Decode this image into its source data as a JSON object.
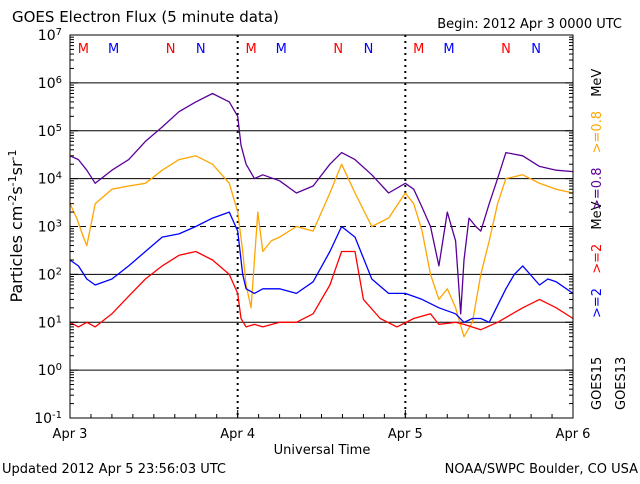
{
  "header": {
    "title": "GOES Electron Flux (5 minute data)",
    "begin": "Begin: 2012 Apr 3 0000 UTC"
  },
  "footer": {
    "updated": "Updated 2012 Apr  5 23:56:03 UTC",
    "credit": "NOAA/SWPC Boulder, CO USA"
  },
  "legend": {
    "ch1_prefix": ">=2",
    "ch1_unit": "MeV",
    "ch2_prefix": ">=0.8",
    "ch2_unit": "MeV",
    "sat_a": "GOES15",
    "sat_b": "GOES13"
  },
  "colors": {
    "goes15_high": "#0000ff",
    "goes15_low": "#5a0099",
    "goes13_high": "#ff0000",
    "goes13_low": "#ffa500",
    "marker_m": "#ff0000",
    "marker_n": "#0000ff"
  },
  "chart_data": {
    "type": "line",
    "title": "GOES Electron Flux (5 minute data)",
    "xlabel": "Universal Time",
    "ylabel": "Particles cm-2s-1sr-1",
    "yscale": "log",
    "ylim": [
      0.1,
      10000000
    ],
    "xlim": [
      0,
      3
    ],
    "x_unit": "days since 2012 Apr 3 0000 UTC",
    "x_ticks": [
      {
        "x": 0,
        "label": "Apr 3"
      },
      {
        "x": 1,
        "label": "Apr 4"
      },
      {
        "x": 2,
        "label": "Apr 5"
      },
      {
        "x": 3,
        "label": "Apr 6"
      }
    ],
    "y_ticks": [
      {
        "exp": -1,
        "base": "10",
        "sup": "-1"
      },
      {
        "exp": 0,
        "base": "10",
        "sup": "0"
      },
      {
        "exp": 1,
        "base": "10",
        "sup": "1"
      },
      {
        "exp": 2,
        "base": "10",
        "sup": "2"
      },
      {
        "exp": 3,
        "base": "10",
        "sup": "3"
      },
      {
        "exp": 4,
        "base": "10",
        "sup": "4"
      },
      {
        "exp": 5,
        "base": "10",
        "sup": "5"
      },
      {
        "exp": 6,
        "base": "10",
        "sup": "6"
      },
      {
        "exp": 7,
        "base": "10",
        "sup": "7"
      }
    ],
    "top_markers": [
      {
        "x": 0.08,
        "label": "M",
        "color": "#ff0000"
      },
      {
        "x": 0.26,
        "label": "M",
        "color": "#0000ff"
      },
      {
        "x": 0.6,
        "label": "N",
        "color": "#ff0000"
      },
      {
        "x": 0.78,
        "label": "N",
        "color": "#0000ff"
      },
      {
        "x": 1.08,
        "label": "M",
        "color": "#ff0000"
      },
      {
        "x": 1.26,
        "label": "M",
        "color": "#0000ff"
      },
      {
        "x": 1.6,
        "label": "N",
        "color": "#ff0000"
      },
      {
        "x": 1.78,
        "label": "N",
        "color": "#0000ff"
      },
      {
        "x": 2.08,
        "label": "M",
        "color": "#ff0000"
      },
      {
        "x": 2.26,
        "label": "M",
        "color": "#0000ff"
      },
      {
        "x": 2.6,
        "label": "N",
        "color": "#ff0000"
      },
      {
        "x": 2.78,
        "label": "N",
        "color": "#0000ff"
      }
    ],
    "grid": true,
    "series": [
      {
        "color": "#5a0099",
        "x": [
          0,
          0.05,
          0.1,
          0.15,
          0.25,
          0.35,
          0.45,
          0.55,
          0.65,
          0.75,
          0.85,
          0.95,
          1.0,
          1.02,
          1.05,
          1.1,
          1.15,
          1.25,
          1.35,
          1.45,
          1.55,
          1.62,
          1.7,
          1.8,
          1.9,
          2.0,
          2.05,
          2.1,
          2.15,
          2.2,
          2.25,
          2.3,
          2.33,
          2.35,
          2.38,
          2.42,
          2.45,
          2.5,
          2.55,
          2.6,
          2.7,
          2.8,
          2.9,
          3.0
        ],
        "values": [
          30000,
          25000,
          15000,
          8000,
          15000,
          25000,
          60000,
          120000,
          250000,
          400000,
          600000,
          400000,
          200000,
          50000,
          20000,
          10000,
          12000,
          9000,
          5000,
          7000,
          20000,
          35000,
          25000,
          12000,
          5000,
          8000,
          6000,
          2500,
          1000,
          150,
          2000,
          500,
          15,
          200,
          1500,
          1000,
          800,
          3000,
          10000,
          35000,
          30000,
          18000,
          15000,
          14000
        ]
      },
      {
        "color": "#ffa500",
        "x": [
          0,
          0.04,
          0.08,
          0.1,
          0.15,
          0.25,
          0.35,
          0.45,
          0.55,
          0.65,
          0.75,
          0.85,
          0.95,
          1.0,
          1.03,
          1.05,
          1.08,
          1.12,
          1.15,
          1.2,
          1.25,
          1.35,
          1.45,
          1.55,
          1.62,
          1.7,
          1.8,
          1.9,
          2.0,
          2.05,
          2.1,
          2.15,
          2.2,
          2.25,
          2.3,
          2.35,
          2.4,
          2.45,
          2.5,
          2.55,
          2.6,
          2.7,
          2.8,
          2.9,
          3.0
        ],
        "values": [
          3000,
          1500,
          600,
          400,
          3000,
          6000,
          7000,
          8000,
          15000,
          25000,
          30000,
          20000,
          8000,
          2000,
          300,
          60,
          20,
          2000,
          300,
          500,
          600,
          1000,
          800,
          5000,
          20000,
          5000,
          1000,
          1500,
          5000,
          3000,
          800,
          100,
          30,
          50,
          20,
          5,
          10,
          100,
          500,
          3000,
          10000,
          12000,
          8000,
          6000,
          5000
        ]
      },
      {
        "color": "#0000ff",
        "x": [
          0,
          0.05,
          0.1,
          0.15,
          0.25,
          0.35,
          0.45,
          0.55,
          0.65,
          0.75,
          0.85,
          0.95,
          1.0,
          1.03,
          1.05,
          1.1,
          1.15,
          1.25,
          1.35,
          1.45,
          1.55,
          1.62,
          1.7,
          1.8,
          1.9,
          2.0,
          2.1,
          2.2,
          2.3,
          2.35,
          2.4,
          2.45,
          2.5,
          2.6,
          2.65,
          2.7,
          2.8,
          2.85,
          2.9,
          3.0
        ],
        "values": [
          200,
          150,
          80,
          60,
          80,
          150,
          300,
          600,
          700,
          1000,
          1500,
          2000,
          800,
          100,
          50,
          40,
          50,
          50,
          40,
          70,
          300,
          1000,
          600,
          80,
          40,
          40,
          30,
          20,
          15,
          10,
          12,
          12,
          10,
          50,
          100,
          150,
          60,
          80,
          70,
          40
        ]
      },
      {
        "color": "#ff0000",
        "x": [
          0,
          0.05,
          0.1,
          0.15,
          0.25,
          0.35,
          0.45,
          0.55,
          0.65,
          0.75,
          0.85,
          0.95,
          1.0,
          1.02,
          1.05,
          1.1,
          1.15,
          1.25,
          1.35,
          1.45,
          1.55,
          1.62,
          1.7,
          1.75,
          1.85,
          1.95,
          2.05,
          2.15,
          2.2,
          2.3,
          2.35,
          2.45,
          2.55,
          2.7,
          2.8,
          2.9,
          3.0
        ],
        "values": [
          10,
          8,
          10,
          8,
          15,
          35,
          80,
          150,
          250,
          300,
          200,
          100,
          40,
          12,
          8,
          9,
          8,
          10,
          10,
          15,
          60,
          300,
          300,
          30,
          12,
          8,
          12,
          15,
          9,
          10,
          9,
          7,
          10,
          20,
          30,
          20,
          12
        ]
      }
    ]
  }
}
